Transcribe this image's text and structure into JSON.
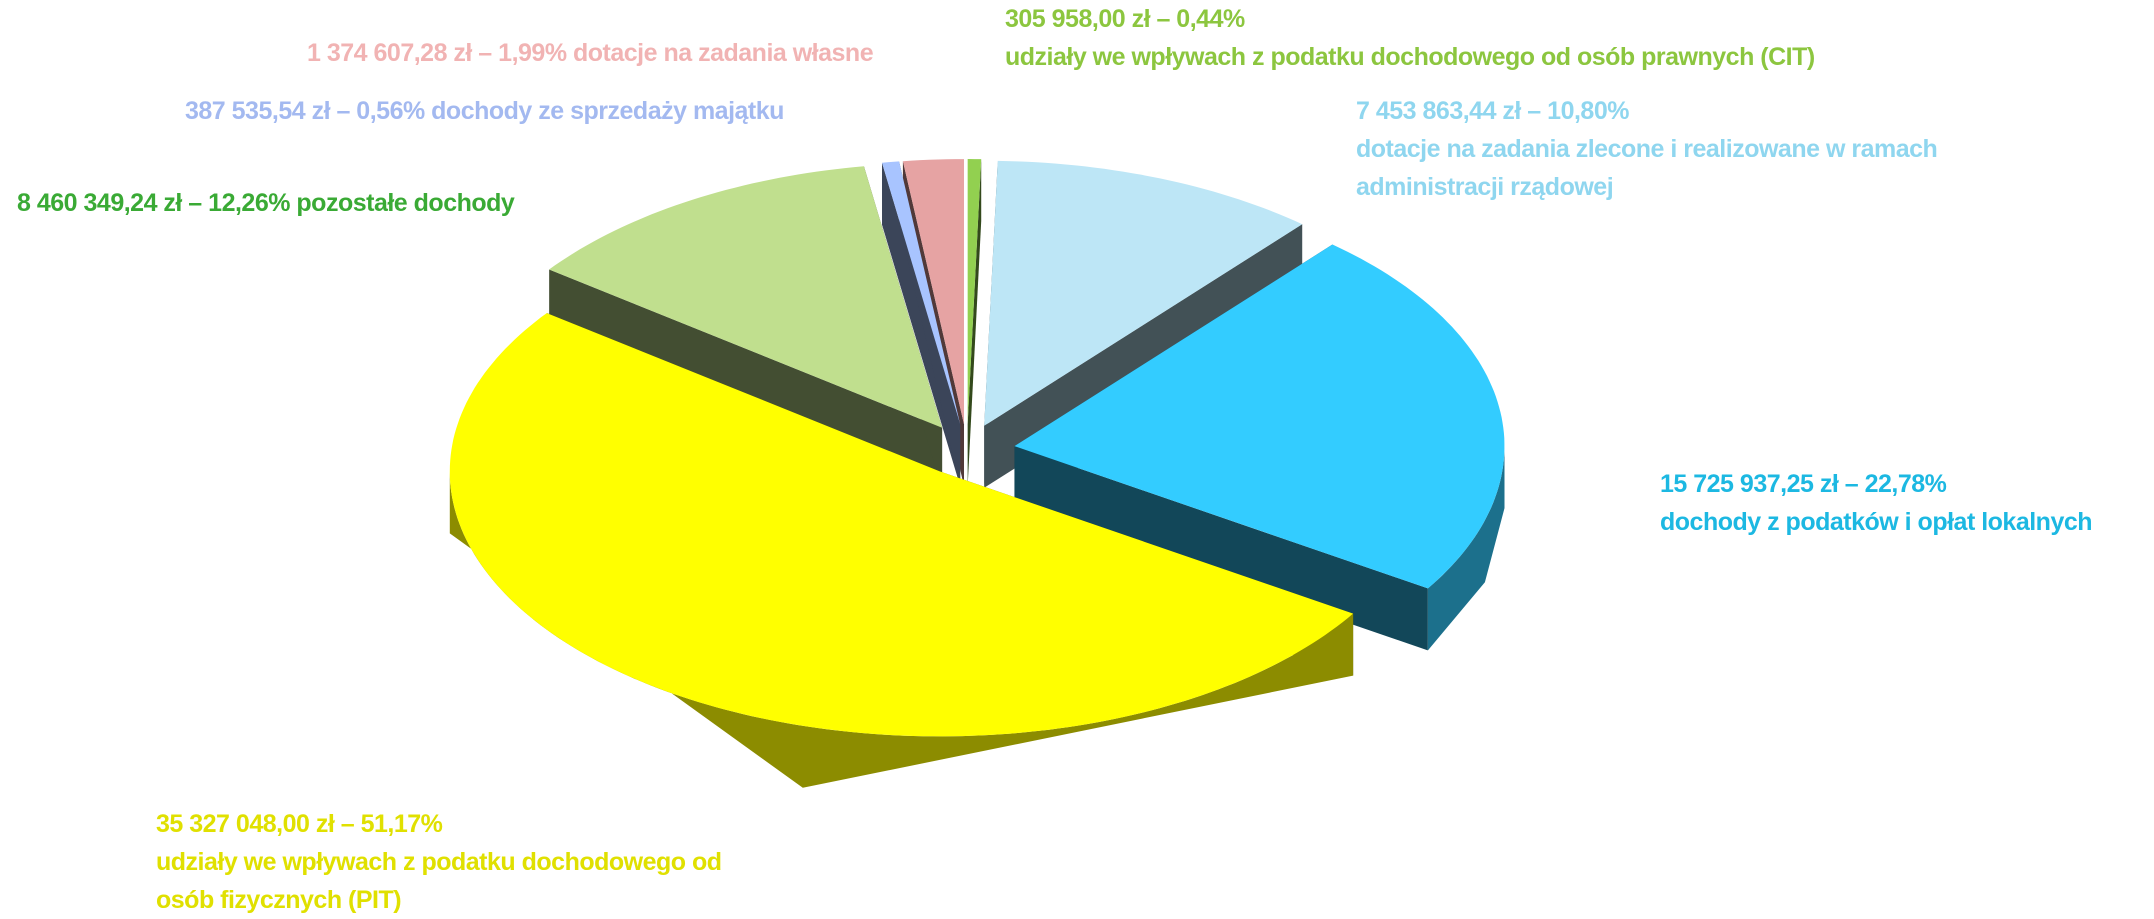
{
  "chart_data": {
    "type": "pie3d",
    "categories": [
      "udziały we wpływach z podatku dochodowego od osób prawnych (CIT)",
      "dotacje na zadania zlecone i realizowane w ramach administracji rządowej",
      "dochody z podatków i opłat lokalnych",
      "udziały we wpływach z podatku dochodowego od osób fizycznych (PIT)",
      "pozostałe  dochody",
      "dochody ze sprzedaży majątku",
      "dotacje na zadania własne"
    ],
    "values": [
      0.44,
      10.8,
      22.78,
      51.17,
      12.26,
      0.56,
      1.99
    ],
    "value_labels": [
      "305 958,00 zł – 0,44%",
      "7 453 863,44 zł – 10,80%",
      "15 725 937,25 zł – 22,78%",
      "35 327 048,00 zł – 51,17%",
      "8 460 349,24 zł – 12,26%",
      "387 535,54 zł – 0,56%",
      "1 374 607,28 zł – 1,99%"
    ],
    "colors": [
      "#92d050",
      "#bde6f6",
      "#33ccff",
      "#ffff00",
      "#c0df8e",
      "#a8c4ff",
      "#e6a3a3"
    ],
    "label_colors": [
      "#8cc63f",
      "#8fd6ef",
      "#1cb8e2",
      "#e0e000",
      "#3aaa35",
      "#a3b9f0",
      "#f1b3b3"
    ]
  }
}
